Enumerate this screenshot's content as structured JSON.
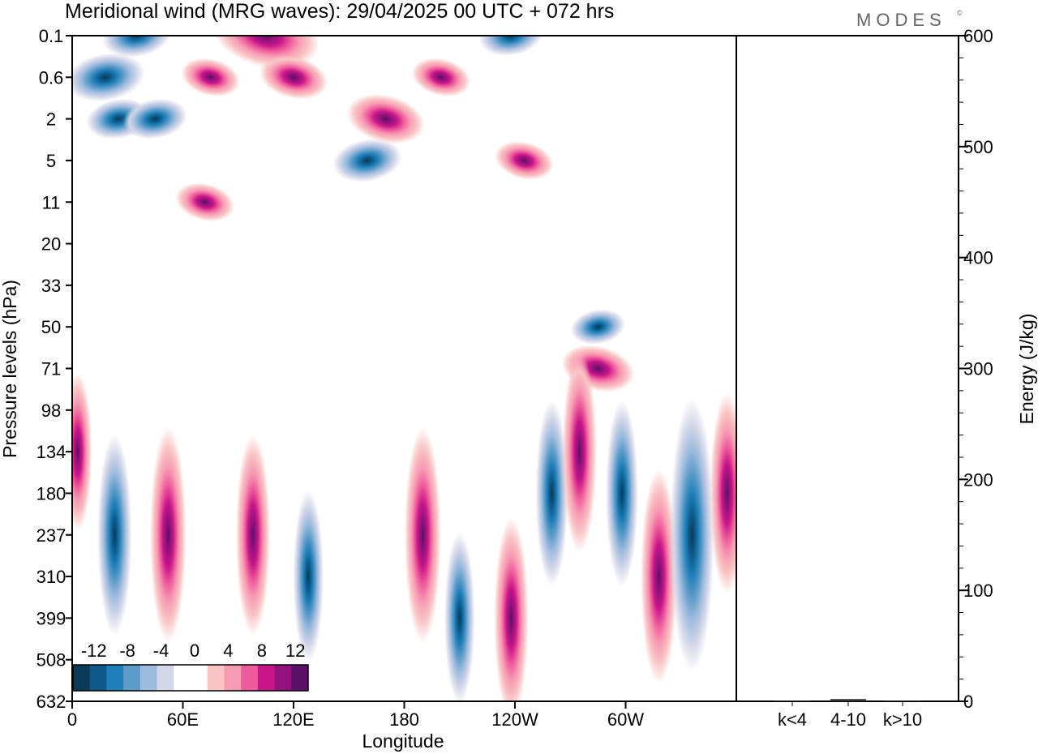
{
  "title": "Meridional wind (MRG waves):  29/04/2025  00 UTC  + 072 hrs",
  "logo": "MODES",
  "logo_mark": "©",
  "chart_data": [
    {
      "type": "heatmap",
      "title": "Meridional wind (MRG waves):  29/04/2025  00 UTC  + 072 hrs",
      "xlabel": "Longitude",
      "ylabel": "Pressure levels (hPa)",
      "x_ticks": [
        "0",
        "60E",
        "120E",
        "180",
        "120W",
        "60W"
      ],
      "y_ticks": [
        "0.1",
        "0.6",
        "2",
        "5",
        "11",
        "20",
        "33",
        "50",
        "71",
        "98",
        "134",
        "180",
        "237",
        "310",
        "399",
        "508",
        "632"
      ],
      "colorbar": {
        "labels": [
          "-12",
          "-8",
          "-4",
          "0",
          "4",
          "8",
          "12"
        ],
        "colors": [
          "#0b3a57",
          "#0d5a8a",
          "#1f7fb8",
          "#5d9cc9",
          "#9dbbde",
          "#d2d6e8",
          "#ffffff",
          "#ffffff",
          "#f9c4c4",
          "#f79ab4",
          "#ee5b9a",
          "#c8168a",
          "#93127c",
          "#5c0f66"
        ]
      },
      "features": [
        {
          "lon": 18,
          "level": "0.6",
          "value": -7
        },
        {
          "lon": 25,
          "level": "2",
          "value": -4
        },
        {
          "lon": 45,
          "level": "2",
          "value": -4
        },
        {
          "lon": 35,
          "level": "0.1",
          "value": -5
        },
        {
          "lon": 105,
          "level": "0.1",
          "value": 13
        },
        {
          "lon": 75,
          "level": "0.6",
          "value": 3
        },
        {
          "lon": 120,
          "level": "0.6",
          "value": 5
        },
        {
          "lon": 170,
          "level": "2",
          "value": 7
        },
        {
          "lon": 200,
          "level": "0.6",
          "value": 3
        },
        {
          "lon": 238,
          "level": "0.1",
          "value": -4
        },
        {
          "lon": 160,
          "level": "5",
          "value": -5
        },
        {
          "lon": 72,
          "level": "11",
          "value": 3
        },
        {
          "lon": 245,
          "level": "5",
          "value": 3
        },
        {
          "lon": 285,
          "level": "71",
          "value": 6
        },
        {
          "lon": 285,
          "level": "50",
          "value": -2
        },
        {
          "lon": 3,
          "level": "134",
          "value": 3
        },
        {
          "lon": 23,
          "level": "237",
          "value": -6
        },
        {
          "lon": 52,
          "level": "237",
          "value": 7
        },
        {
          "lon": 98,
          "level": "237",
          "value": 6
        },
        {
          "lon": 128,
          "level": "310",
          "value": -4
        },
        {
          "lon": 190,
          "level": "237",
          "value": 7
        },
        {
          "lon": 210,
          "level": "399",
          "value": -4
        },
        {
          "lon": 238,
          "level": "399",
          "value": 6
        },
        {
          "lon": 260,
          "level": "180",
          "value": -5
        },
        {
          "lon": 275,
          "level": "134",
          "value": 6
        },
        {
          "lon": 298,
          "level": "180",
          "value": -5
        },
        {
          "lon": 318,
          "level": "310",
          "value": 7
        },
        {
          "lon": 336,
          "level": "237",
          "value": -11
        },
        {
          "lon": 355,
          "level": "180",
          "value": 6
        }
      ]
    },
    {
      "type": "bar",
      "ylabel": "Energy (J/kg)",
      "ylim": [
        0,
        600
      ],
      "y_ticks": [
        "0",
        "100",
        "200",
        "300",
        "400",
        "500",
        "600"
      ],
      "categories": [
        "k<4",
        "4-10",
        "k>10"
      ],
      "values": [
        0.5,
        2,
        0.5
      ]
    }
  ]
}
